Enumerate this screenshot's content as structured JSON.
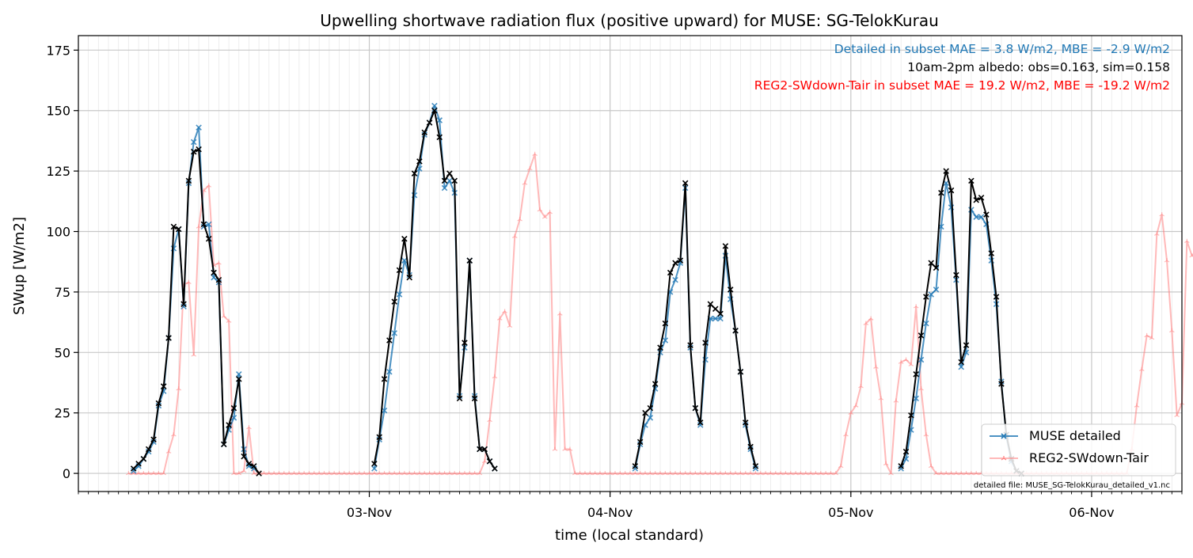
{
  "chart_data": {
    "type": "line",
    "title": "Upwelling shortwave radiation flux (positive upward) for MUSE: SG-TelokKurau",
    "xlabel": "time (local standard)",
    "ylabel": "SWup [W/m2]",
    "x_unit": "hours",
    "x_tick_labels": [
      "03-Nov",
      "04-Nov",
      "05-Nov",
      "06-Nov"
    ],
    "x_tick_values": [
      24,
      48,
      72,
      96
    ],
    "xlim": [
      -5,
      105
    ],
    "ylim": [
      -7.5,
      181
    ],
    "y_ticks": [
      0,
      25,
      50,
      75,
      100,
      125,
      150,
      175
    ],
    "grid": true,
    "legend_position": "lower right",
    "annotations": [
      {
        "text": "Detailed in subset MAE = 3.8 W/m2, MBE = -2.9 W/m2",
        "color": "#1f77b4"
      },
      {
        "text": "10am-2pm albedo: obs=0.163, sim=0.158",
        "color": "#000000"
      },
      {
        "text": "REG2-SWdown-Tair in subset MAE = 19.2 W/m2, MBE = -19.2 W/m2",
        "color": "#ff0000"
      }
    ],
    "footnote": "detailed file: MUSE_SG-TelokKurau_detailed_v1.nc",
    "series": [
      {
        "name": "REG2-SWdown-Tair",
        "color": "#ff7f7f",
        "start": 0,
        "step": 0.5,
        "values": [
          0,
          0,
          0,
          0,
          0,
          0,
          0,
          0,
          9,
          16,
          35,
          78,
          79,
          49,
          102,
          117,
          119,
          86,
          87,
          65,
          63,
          0,
          0,
          1,
          19,
          0,
          0,
          0,
          0,
          0,
          0,
          0,
          0,
          0,
          0,
          0,
          0,
          0,
          0,
          0,
          0,
          0,
          0,
          0,
          0,
          0,
          0,
          0,
          0,
          0,
          0,
          0,
          0,
          0,
          0,
          0,
          0,
          0,
          0,
          0,
          0,
          0,
          0,
          0,
          0,
          0,
          0,
          0,
          0,
          0,
          0,
          5,
          22,
          40,
          64,
          67,
          61,
          98,
          105,
          120,
          126,
          132,
          109,
          106,
          108,
          10,
          66,
          10,
          10,
          0,
          0,
          0,
          0,
          0,
          0,
          0,
          0,
          0,
          0,
          0,
          0,
          0,
          0,
          0,
          0,
          0,
          0,
          0,
          0,
          0,
          0,
          0,
          0,
          0,
          0,
          0,
          0,
          0,
          0,
          0,
          0,
          0,
          0,
          0,
          0,
          0,
          0,
          0,
          0,
          0,
          0,
          0,
          0,
          0,
          0,
          0,
          0,
          0,
          0,
          0,
          0,
          0,
          3,
          16,
          25,
          28,
          36,
          62,
          64,
          44,
          31,
          4,
          0,
          30,
          46,
          47,
          45,
          69,
          35,
          16,
          3,
          0,
          0,
          0,
          0,
          0,
          0,
          0,
          0,
          0,
          0,
          0,
          0,
          0,
          0,
          0,
          0,
          0,
          0,
          0,
          0,
          0,
          0,
          0,
          0,
          0,
          0,
          0,
          0,
          0,
          0,
          0,
          0,
          0,
          0,
          0,
          0,
          0,
          0,
          0,
          10,
          28,
          43,
          57,
          56,
          99,
          107,
          88,
          59,
          24,
          29,
          96,
          90,
          92,
          84,
          68,
          0,
          0,
          0,
          0,
          0,
          0,
          0,
          0,
          0,
          0,
          0,
          0,
          0,
          0,
          0,
          0,
          0,
          0,
          0,
          0,
          0,
          0,
          0,
          0,
          0,
          0,
          0,
          0,
          0,
          0,
          0
        ]
      },
      {
        "name": "MUSE detailed",
        "color": "#1f77b4",
        "start": 0.5,
        "step": 0.5,
        "values": [
          1,
          3,
          6,
          9,
          13,
          28,
          34,
          56,
          93,
          101,
          69,
          120,
          137,
          143,
          102,
          103,
          81,
          79,
          12,
          18,
          23,
          41,
          10,
          3,
          2
        ]
      },
      {
        "name": "",
        "color": "#000000",
        "start": 0.5,
        "step": 0.5,
        "values": [
          2,
          4,
          6,
          10,
          14,
          29,
          36,
          56,
          102,
          101,
          70,
          121,
          133,
          134,
          103,
          97,
          83,
          80,
          12,
          20,
          27,
          39,
          7,
          4,
          3,
          0
        ]
      }
    ],
    "segments": [
      {
        "series": "MUSE detailed",
        "start": 24.5,
        "step": 0.5,
        "values": [
          2,
          14,
          26,
          42,
          58,
          74,
          88,
          82,
          115,
          126,
          140,
          145,
          152,
          146,
          118,
          121,
          116,
          32,
          52,
          88,
          32,
          10,
          10,
          5,
          2
        ]
      },
      {
        "series": "",
        "start": 24.5,
        "step": 0.5,
        "values": [
          4,
          15,
          39,
          55,
          71,
          84,
          97,
          81,
          124,
          129,
          141,
          145,
          150,
          139,
          121,
          124,
          121,
          31,
          54,
          88,
          31,
          10,
          10,
          5,
          2
        ]
      },
      {
        "series": "MUSE detailed",
        "start": 50.5,
        "step": 0.5,
        "values": [
          2,
          12,
          20,
          23,
          35,
          50,
          55,
          75,
          80,
          87,
          118,
          52,
          27,
          20,
          47,
          64,
          64,
          64,
          90,
          72,
          59,
          42,
          20,
          10,
          2
        ]
      },
      {
        "series": "",
        "start": 50.5,
        "step": 0.5,
        "values": [
          3,
          13,
          25,
          27,
          37,
          52,
          62,
          83,
          87,
          88,
          120,
          53,
          27,
          21,
          54,
          70,
          68,
          66,
          94,
          76,
          59,
          42,
          21,
          11,
          3
        ]
      },
      {
        "series": "MUSE detailed",
        "start": 77,
        "step": 0.5,
        "values": [
          2,
          6,
          18,
          31,
          47,
          62,
          74,
          76,
          102,
          120,
          110,
          80,
          44,
          50,
          109,
          106,
          106,
          103,
          88,
          70,
          38,
          15,
          5,
          1,
          0
        ]
      },
      {
        "series": "",
        "start": 77,
        "step": 0.5,
        "values": [
          3,
          9,
          24,
          41,
          57,
          73,
          87,
          85,
          116,
          125,
          117,
          82,
          46,
          53,
          121,
          113,
          114,
          107,
          91,
          73,
          37,
          16,
          6,
          1,
          0
        ]
      }
    ]
  }
}
